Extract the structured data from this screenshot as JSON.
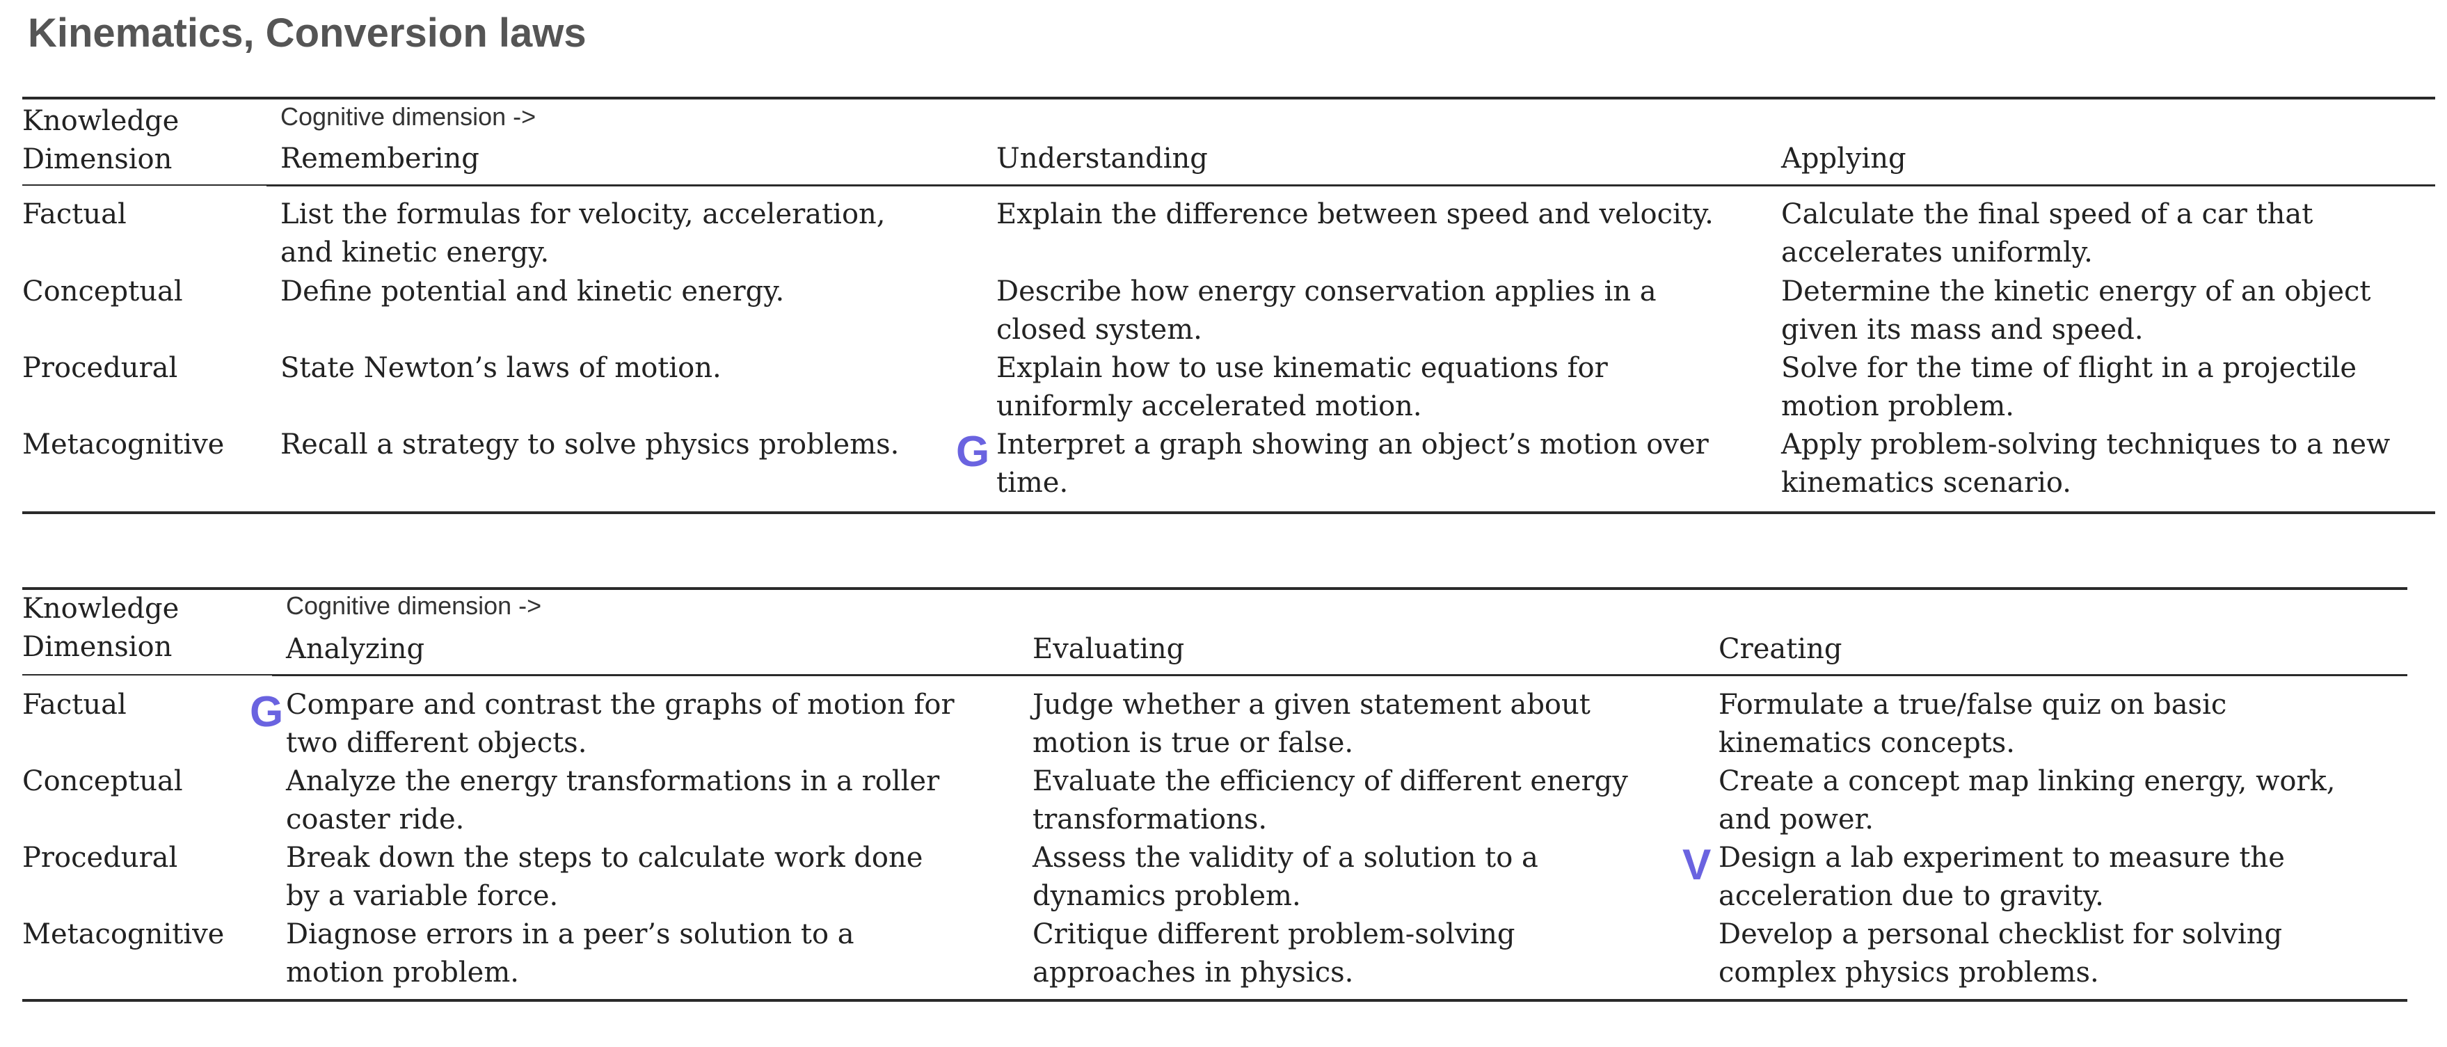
{
  "title": "Kinematics, Conversion laws",
  "tables": [
    {
      "caption": "Cognitive dimension ->",
      "knowledge_header": [
        "Knowledge",
        "Dimension"
      ],
      "columns": [
        "Remembering",
        "Understanding",
        "Applying"
      ],
      "rows": [
        {
          "dimension": "Factual",
          "cells": [
            [
              "List the formulas for velocity, acceleration,",
              "and kinetic energy."
            ],
            [
              "Explain the difference between speed and velocity."
            ],
            [
              "Calculate the final speed of a car that",
              "accelerates uniformly."
            ]
          ]
        },
        {
          "dimension": "Conceptual",
          "cells": [
            [
              "Define potential and kinetic energy."
            ],
            [
              "Describe how energy conservation applies in a",
              "closed system."
            ],
            [
              "Determine the kinetic energy of an object",
              "given its mass and speed."
            ]
          ]
        },
        {
          "dimension": "Procedural",
          "cells": [
            [
              "State Newton’s laws of motion."
            ],
            [
              "Explain how to use kinematic equations for",
              "uniformly accelerated motion."
            ],
            [
              "Solve for the time of flight in a projectile",
              "motion problem."
            ]
          ]
        },
        {
          "dimension": "Metacognitive",
          "cells": [
            [
              "Recall a strategy to solve physics problems."
            ],
            [
              "Interpret a graph showing an object’s motion over",
              "time."
            ],
            [
              "Apply problem-solving techniques to a new",
              "kinematics scenario."
            ]
          ]
        }
      ],
      "marks": [
        {
          "label": "G",
          "row": 3,
          "col": 1
        }
      ]
    },
    {
      "caption": "Cognitive dimension ->",
      "knowledge_header": [
        "Knowledge",
        "Dimension"
      ],
      "columns": [
        "Analyzing",
        "Evaluating",
        "Creating"
      ],
      "rows": [
        {
          "dimension": "Factual",
          "cells": [
            [
              "Compare and contrast the graphs of motion for",
              "two different objects."
            ],
            [
              "Judge whether a given statement about",
              "motion is true or false."
            ],
            [
              "Formulate a true/false quiz on basic",
              "kinematics concepts."
            ]
          ]
        },
        {
          "dimension": "Conceptual",
          "cells": [
            [
              "Analyze the energy transformations in a roller",
              "coaster ride."
            ],
            [
              "Evaluate the efficiency of different energy",
              "transformations."
            ],
            [
              "Create a concept map linking energy, work,",
              "and power."
            ]
          ]
        },
        {
          "dimension": "Procedural",
          "cells": [
            [
              "Break down the steps to calculate work done",
              "by a variable force."
            ],
            [
              "Assess the validity of a solution to a",
              "dynamics problem."
            ],
            [
              "Design a lab experiment to measure the",
              "acceleration due to gravity."
            ]
          ]
        },
        {
          "dimension": "Metacognitive",
          "cells": [
            [
              "Diagnose errors in a peer’s solution to a",
              "motion problem."
            ],
            [
              "Critique different problem-solving",
              "approaches in physics."
            ],
            [
              "Develop a personal checklist for solving",
              "complex physics problems."
            ]
          ]
        }
      ],
      "marks": [
        {
          "label": "G",
          "row": 0,
          "col": 0
        },
        {
          "label": "V",
          "row": 2,
          "col": 2
        }
      ]
    }
  ]
}
